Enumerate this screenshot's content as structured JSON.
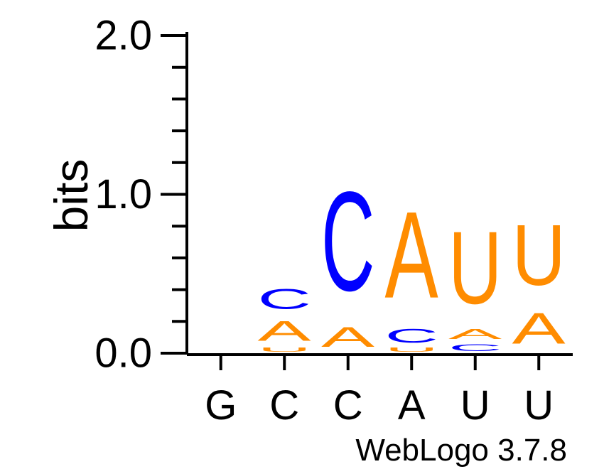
{
  "chart_data": {
    "type": "sequence-logo",
    "ylabel": "bits",
    "ylim": [
      0,
      2
    ],
    "y_ticks": [
      "0.0",
      "1.0",
      "2.0"
    ],
    "categories": [
      "G",
      "C",
      "C",
      "A",
      "U",
      "U"
    ],
    "footer": "WebLogo 3.7.8",
    "colors": {
      "A": "#ff8c00",
      "C": "#0000ff",
      "G": "#ffa500",
      "U": "#ff8c00"
    },
    "positions": [
      {
        "label": "G",
        "stack": []
      },
      {
        "label": "C",
        "stack": [
          {
            "letter": "U",
            "bits": 0.04
          },
          {
            "letter": "A",
            "bits": 0.2
          },
          {
            "letter": "C",
            "bits": 0.2
          }
        ]
      },
      {
        "label": "C",
        "stack": [
          {
            "letter": "A",
            "bits": 0.2
          },
          {
            "letter": "C",
            "bits": 1.0
          }
        ]
      },
      {
        "label": "A",
        "stack": [
          {
            "letter": "U",
            "bits": 0.04
          },
          {
            "letter": "C",
            "bits": 0.14
          },
          {
            "letter": "A",
            "bits": 0.87
          }
        ]
      },
      {
        "label": "U",
        "stack": [
          {
            "letter": "C",
            "bits": 0.07
          },
          {
            "letter": "A",
            "bits": 0.1
          },
          {
            "letter": "U",
            "bits": 0.73
          }
        ]
      },
      {
        "label": "U",
        "stack": [
          {
            "letter": "A",
            "bits": 0.31
          },
          {
            "letter": "U",
            "bits": 0.61
          }
        ]
      }
    ]
  }
}
